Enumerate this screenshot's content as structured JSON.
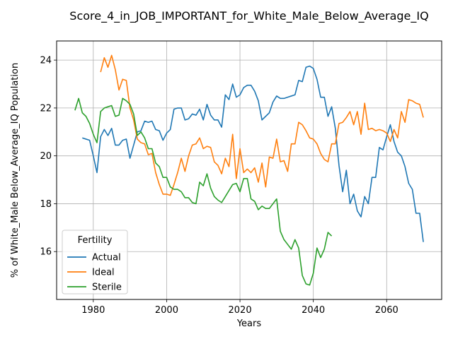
{
  "chart_data": {
    "type": "line",
    "title": "Score_4_in_JOB_IMPORTANT_for_White_Male_Below_Average_IQ",
    "xlabel": "Years",
    "ylabel": "% of White_Male Below_Average_IQ Population",
    "xlim": [
      1970,
      2075
    ],
    "ylim": [
      14.0,
      24.8
    ],
    "xticks": [
      1980,
      2000,
      2020,
      2040,
      2060
    ],
    "yticks": [
      16,
      18,
      20,
      22,
      24
    ],
    "grid": true,
    "legend": {
      "title": "Fertility",
      "position": "lower-left"
    },
    "colors": {
      "Actual": "#1f77b4",
      "Ideal": "#ff7f0e",
      "Sterile": "#2ca02c"
    },
    "series": [
      {
        "name": "Actual",
        "x": [
          1977,
          1978,
          1979,
          1980,
          1981,
          1982,
          1983,
          1984,
          1985,
          1986,
          1987,
          1988,
          1989,
          1990,
          1991,
          1992,
          1993,
          1994,
          1995,
          1996,
          1997,
          1998,
          1999,
          2000,
          2001,
          2002,
          2003,
          2004,
          2005,
          2006,
          2007,
          2008,
          2009,
          2010,
          2011,
          2012,
          2013,
          2014,
          2015,
          2016,
          2017,
          2018,
          2019,
          2020,
          2021,
          2022,
          2023,
          2024,
          2025,
          2026,
          2027,
          2028,
          2029,
          2030,
          2031,
          2032,
          2033,
          2034,
          2035,
          2036,
          2037,
          2038,
          2039,
          2040,
          2041,
          2042,
          2043,
          2044,
          2045,
          2046,
          2047,
          2048,
          2049,
          2050,
          2051,
          2052,
          2053,
          2054,
          2055,
          2056,
          2057,
          2058,
          2059,
          2060,
          2061,
          2062,
          2063,
          2064,
          2065,
          2066,
          2067,
          2068,
          2069,
          2070
        ],
        "values": [
          20.75,
          20.7,
          20.65,
          20.0,
          19.3,
          20.8,
          21.1,
          20.85,
          21.15,
          20.45,
          20.45,
          20.65,
          20.7,
          19.9,
          20.45,
          21.0,
          21.05,
          21.45,
          21.4,
          21.45,
          21.1,
          21.05,
          20.65,
          20.95,
          21.1,
          21.95,
          22.0,
          22.0,
          21.5,
          21.55,
          21.75,
          21.7,
          21.95,
          21.5,
          22.15,
          21.7,
          21.5,
          21.5,
          21.2,
          22.55,
          22.35,
          23.0,
          22.45,
          22.55,
          22.85,
          22.95,
          22.95,
          22.7,
          22.3,
          21.5,
          21.65,
          21.8,
          22.25,
          22.5,
          22.4,
          22.4,
          22.45,
          22.5,
          22.55,
          23.15,
          23.1,
          23.7,
          23.75,
          23.65,
          23.2,
          22.45,
          22.45,
          21.65,
          22.05,
          21.15,
          19.6,
          18.5,
          19.4,
          18.0,
          18.4,
          17.7,
          17.45,
          18.3,
          18.0,
          19.1,
          19.1,
          20.35,
          20.25,
          20.8,
          21.3,
          20.6,
          20.15,
          20.0,
          19.55,
          18.85,
          18.6,
          17.6,
          17.6,
          16.4
        ]
      },
      {
        "name": "Ideal",
        "x": [
          1982,
          1983,
          1984,
          1985,
          1986,
          1987,
          1988,
          1989,
          1990,
          1991,
          1992,
          1993,
          1994,
          1995,
          1996,
          1997,
          1998,
          1999,
          2000,
          2001,
          2002,
          2003,
          2004,
          2005,
          2006,
          2007,
          2008,
          2009,
          2010,
          2011,
          2012,
          2013,
          2014,
          2015,
          2016,
          2017,
          2018,
          2019,
          2020,
          2021,
          2022,
          2023,
          2024,
          2025,
          2026,
          2027,
          2028,
          2029,
          2030,
          2031,
          2032,
          2033,
          2034,
          2035,
          2036,
          2037,
          2038,
          2039,
          2040,
          2041,
          2042,
          2043,
          2044,
          2045,
          2046,
          2047,
          2048,
          2049,
          2050,
          2051,
          2052,
          2053,
          2054,
          2055,
          2056,
          2057,
          2058,
          2059,
          2060,
          2061,
          2062,
          2063,
          2064,
          2065,
          2066,
          2067,
          2068,
          2069,
          2070
        ],
        "values": [
          23.5,
          24.1,
          23.7,
          24.2,
          23.6,
          22.75,
          23.2,
          23.15,
          22.0,
          21.5,
          20.7,
          20.55,
          20.5,
          20.05,
          20.1,
          19.3,
          18.8,
          18.4,
          18.4,
          18.35,
          18.8,
          19.3,
          19.9,
          19.35,
          20.0,
          20.45,
          20.5,
          20.75,
          20.3,
          20.4,
          20.35,
          19.75,
          19.6,
          19.25,
          19.9,
          19.55,
          20.9,
          19.05,
          20.3,
          19.3,
          19.45,
          19.3,
          19.5,
          18.9,
          19.7,
          18.7,
          19.95,
          19.9,
          20.7,
          19.75,
          19.8,
          19.35,
          20.5,
          20.5,
          21.4,
          21.3,
          21.05,
          20.75,
          20.7,
          20.5,
          20.1,
          19.85,
          19.75,
          20.5,
          20.5,
          21.35,
          21.4,
          21.6,
          21.85,
          21.3,
          21.85,
          20.9,
          22.2,
          21.1,
          21.15,
          21.05,
          21.1,
          21.05,
          20.95,
          20.6,
          21.1,
          20.75,
          21.85,
          21.4,
          22.35,
          22.3,
          22.2,
          22.15,
          21.6
        ]
      },
      {
        "name": "Sterile",
        "x": [
          1975,
          1976,
          1977,
          1978,
          1979,
          1980,
          1981,
          1982,
          1983,
          1984,
          1985,
          1986,
          1987,
          1988,
          1989,
          1990,
          1991,
          1992,
          1993,
          1994,
          1995,
          1996,
          1997,
          1998,
          1999,
          2000,
          2001,
          2002,
          2003,
          2004,
          2005,
          2006,
          2007,
          2008,
          2009,
          2010,
          2011,
          2012,
          2013,
          2014,
          2015,
          2016,
          2017,
          2018,
          2019,
          2020,
          2021,
          2022,
          2023,
          2024,
          2025,
          2026,
          2027,
          2028,
          2029,
          2030,
          2031,
          2032,
          2033,
          2034,
          2035,
          2036,
          2037,
          2038,
          2039,
          2040,
          2041,
          2042,
          2043,
          2044,
          2045
        ],
        "values": [
          21.9,
          22.4,
          21.8,
          21.65,
          21.35,
          20.9,
          20.55,
          21.85,
          22.0,
          22.05,
          22.1,
          21.65,
          21.7,
          22.4,
          22.3,
          22.15,
          21.75,
          20.85,
          21.0,
          20.75,
          20.3,
          20.3,
          19.7,
          19.55,
          19.1,
          19.1,
          18.7,
          18.6,
          18.6,
          18.5,
          18.25,
          18.25,
          18.05,
          18.0,
          18.9,
          18.75,
          19.25,
          18.65,
          18.3,
          18.15,
          18.05,
          18.3,
          18.55,
          18.8,
          18.85,
          18.5,
          19.05,
          19.05,
          18.2,
          18.1,
          17.75,
          17.9,
          17.8,
          17.8,
          18.0,
          18.2,
          16.85,
          16.5,
          16.3,
          16.1,
          16.5,
          16.15,
          15.0,
          14.65,
          14.6,
          15.1,
          16.15,
          15.75,
          16.1,
          16.8,
          16.65
        ]
      }
    ]
  }
}
